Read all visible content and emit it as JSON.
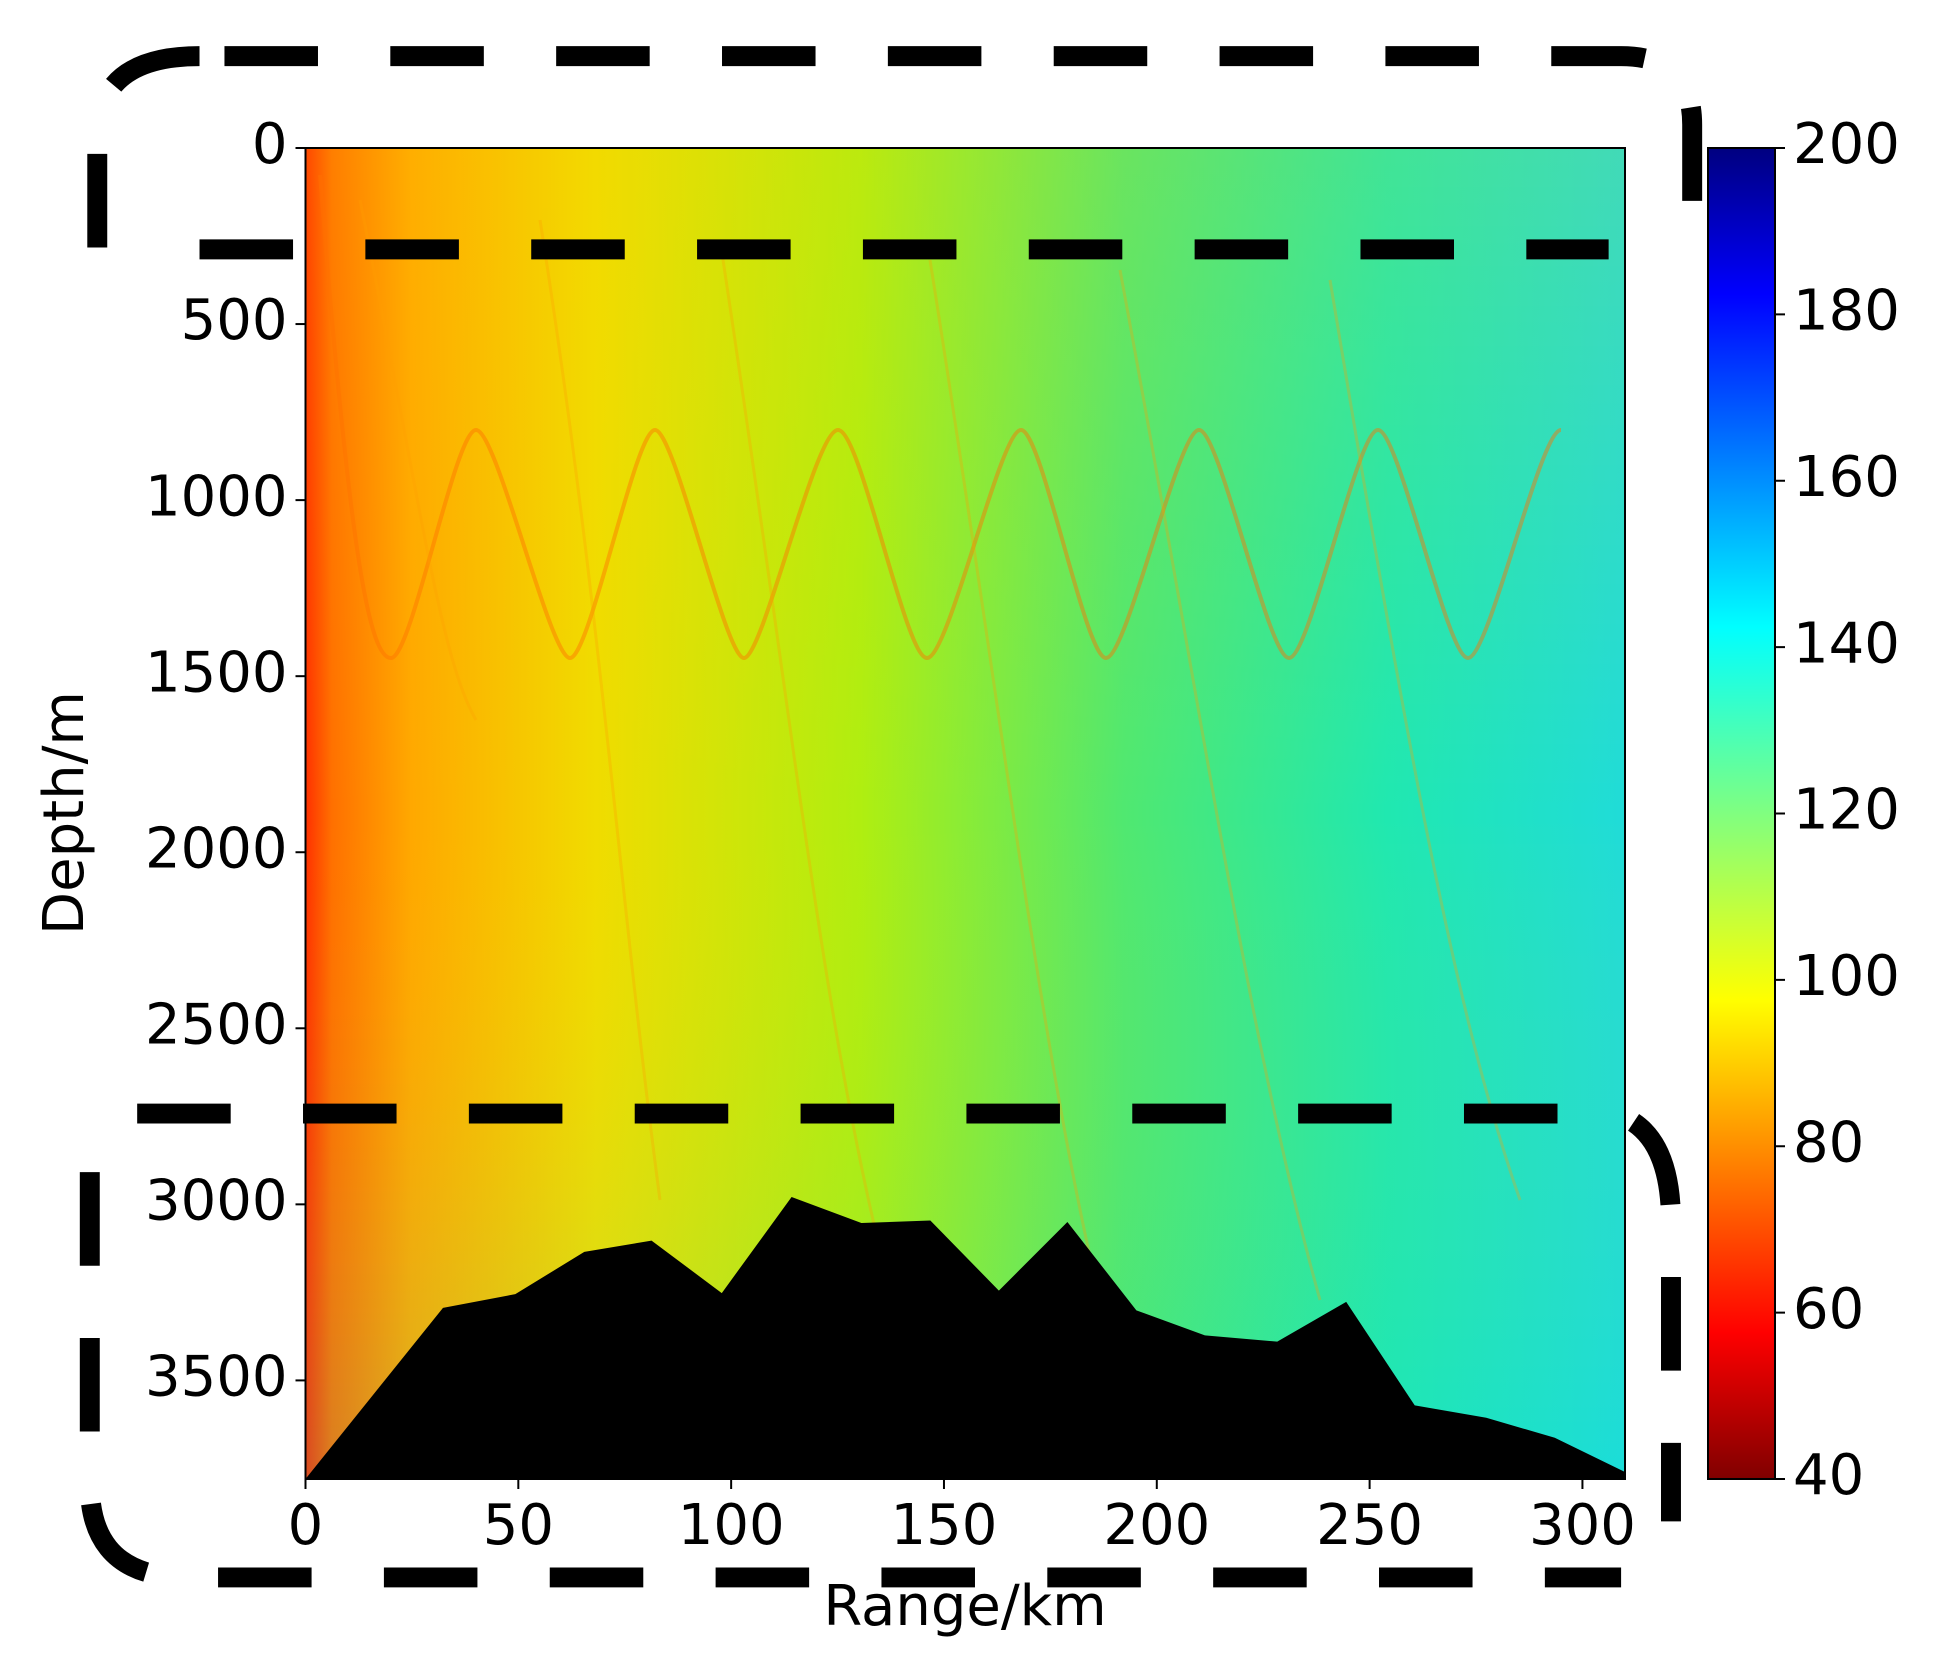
{
  "chart_data": {
    "type": "heatmap",
    "x_label": "Range/km",
    "y_label": "Depth/m",
    "xlim": [
      0,
      310
    ],
    "ylim": [
      3780,
      0
    ],
    "xticks": [
      0,
      50,
      100,
      150,
      200,
      250,
      300
    ],
    "yticks": [
      0,
      500,
      1000,
      1500,
      2000,
      2500,
      3000,
      3500
    ],
    "colorbar": {
      "lim": [
        40,
        200
      ],
      "ticks": [
        40,
        60,
        80,
        100,
        120,
        140,
        160,
        180,
        200
      ],
      "colormap": "jet"
    },
    "seabed": {
      "color": "#000000",
      "x": [
        0,
        32.3,
        49.3,
        65.5,
        81.3,
        97.8,
        114.2,
        130.6,
        146.8,
        162.9,
        179,
        195.2,
        211.3,
        228.3,
        244.5,
        260.6,
        277.4,
        293.5,
        310
      ],
      "y": [
        3780,
        3294,
        3255,
        3135,
        3103,
        3252,
        2979,
        3053,
        3046,
        3245,
        3050,
        3301,
        3372,
        3390,
        3277,
        3571,
        3606,
        3663,
        3760
      ]
    }
  }
}
